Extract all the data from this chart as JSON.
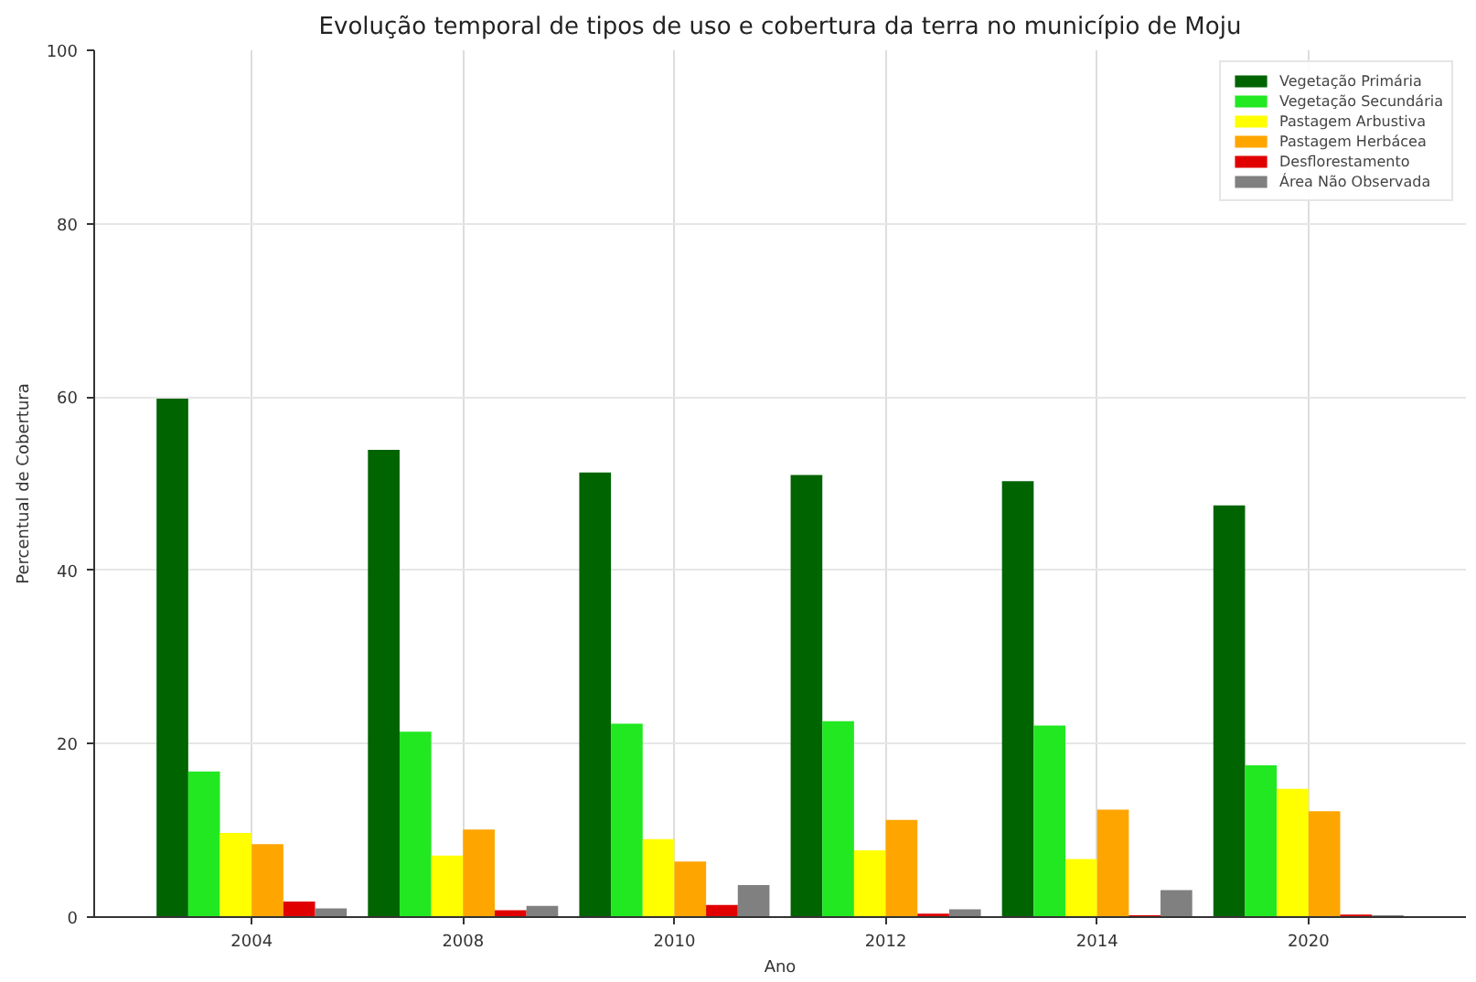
{
  "chart_data": {
    "type": "bar",
    "title": "Evolução temporal de tipos de uso e cobertura da terra no município de Moju",
    "xlabel": "Ano",
    "ylabel": "Percentual de Cobertura",
    "categories": [
      "2004",
      "2008",
      "2010",
      "2012",
      "2014",
      "2020"
    ],
    "series": [
      {
        "name": "Vegetação Primária",
        "color": "#006400",
        "values": [
          59.8,
          53.9,
          51.3,
          51.0,
          50.3,
          47.5
        ]
      },
      {
        "name": "Vegetação Secundária",
        "color": "#22e822",
        "values": [
          16.8,
          21.4,
          22.3,
          22.6,
          22.1,
          17.5
        ]
      },
      {
        "name": "Pastagem Arbustiva",
        "color": "#ffff00",
        "values": [
          9.7,
          7.1,
          9.0,
          7.7,
          6.7,
          14.8
        ]
      },
      {
        "name": "Pastagem Herbácea",
        "color": "#ffa500",
        "values": [
          8.4,
          10.1,
          6.4,
          11.2,
          12.4,
          12.2
        ]
      },
      {
        "name": "Desflorestamento",
        "color": "#e00000",
        "values": [
          1.8,
          0.8,
          1.4,
          0.4,
          0.2,
          0.3
        ]
      },
      {
        "name": "Área Não Observada",
        "color": "#808080",
        "values": [
          1.0,
          1.3,
          3.7,
          0.9,
          3.1,
          0.2
        ]
      }
    ],
    "ylim": [
      0,
      100
    ],
    "yticks": [
      0,
      20,
      40,
      60,
      80,
      100
    ],
    "grid": true,
    "legend": "top right"
  }
}
